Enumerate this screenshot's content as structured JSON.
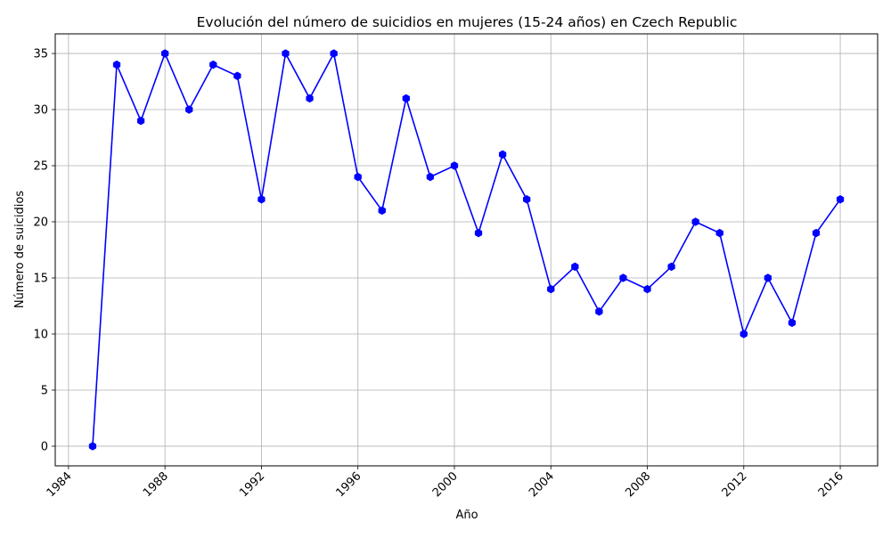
{
  "chart_data": {
    "type": "line",
    "title": "Evolución del número de suicidios en mujeres (15-24 años) en Czech Republic",
    "xlabel": "Año",
    "ylabel": "Número de suicidios",
    "xlim": [
      1983.45,
      2017.55
    ],
    "ylim": [
      -1.75,
      36.75
    ],
    "x_ticks": [
      1984,
      1988,
      1992,
      1996,
      2000,
      2004,
      2008,
      2012,
      2016
    ],
    "y_ticks": [
      0,
      5,
      10,
      15,
      20,
      25,
      30,
      35
    ],
    "grid": true,
    "series": [
      {
        "color": "#0000ff",
        "marker": "hexagon",
        "x": [
          1985,
          1986,
          1987,
          1988,
          1989,
          1990,
          1991,
          1992,
          1993,
          1994,
          1995,
          1996,
          1997,
          1998,
          1999,
          2000,
          2001,
          2002,
          2003,
          2004,
          2005,
          2006,
          2007,
          2008,
          2009,
          2010,
          2011,
          2012,
          2013,
          2014,
          2015,
          2016
        ],
        "values": [
          0,
          34,
          29,
          35,
          30,
          34,
          33,
          22,
          35,
          31,
          35,
          24,
          21,
          31,
          24,
          25,
          19,
          26,
          22,
          14,
          16,
          12,
          15,
          14,
          16,
          20,
          19,
          10,
          15,
          11,
          19,
          22
        ]
      }
    ]
  }
}
